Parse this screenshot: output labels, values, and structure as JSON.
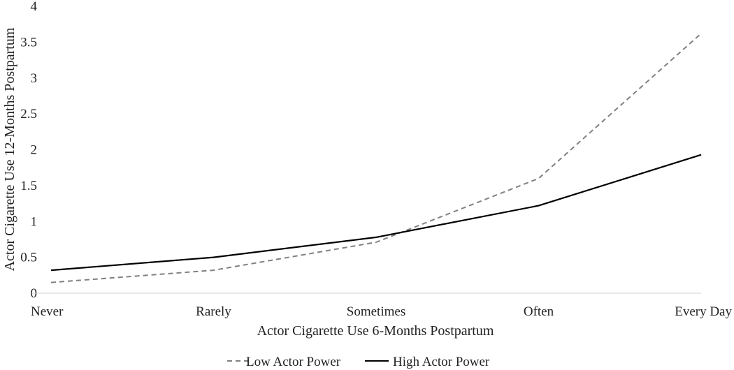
{
  "chart_data": {
    "type": "line",
    "title": "",
    "xlabel": "Actor Cigarette Use 6-Months Postpartum",
    "ylabel": "Actor Cigarette Use 12-Months Postpartum",
    "categories": [
      "Never",
      "Rarely",
      "Sometimes",
      "Often",
      "Every Day"
    ],
    "ylim": [
      0,
      4
    ],
    "yticks": [
      "0",
      "0.5",
      "1",
      "1.5",
      "2",
      "2.5",
      "3",
      "3.5",
      "4"
    ],
    "grid": false,
    "legend_position": "bottom",
    "series": [
      {
        "name": "Low Actor Power",
        "values": [
          0.15,
          0.32,
          0.71,
          1.6,
          3.62
        ],
        "color": "#808080",
        "style": "dashed"
      },
      {
        "name": "High Actor Power",
        "values": [
          0.32,
          0.5,
          0.78,
          1.22,
          1.93
        ],
        "color": "#000000",
        "style": "solid"
      }
    ]
  }
}
